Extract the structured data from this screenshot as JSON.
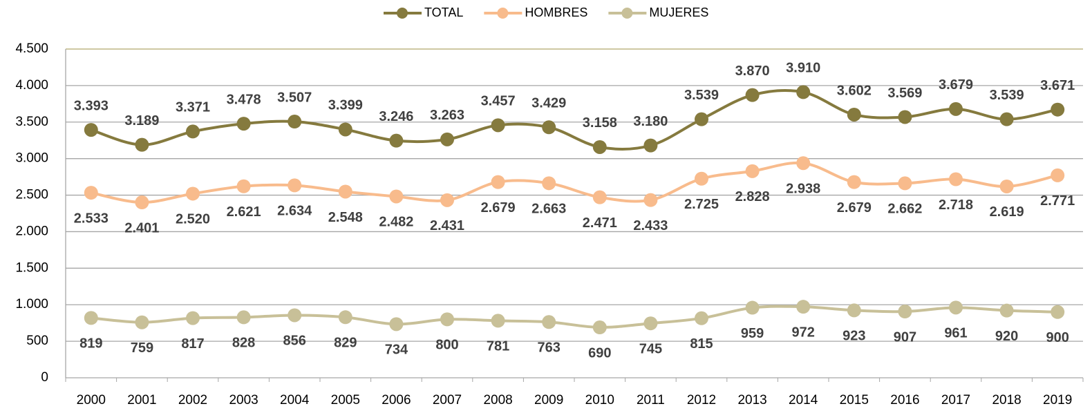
{
  "chart_data": {
    "type": "line",
    "categories": [
      "2000",
      "2001",
      "2002",
      "2003",
      "2004",
      "2005",
      "2006",
      "2007",
      "2008",
      "2009",
      "2010",
      "2011",
      "2012",
      "2013",
      "2014",
      "2015",
      "2016",
      "2017",
      "2018",
      "2019"
    ],
    "series": [
      {
        "name": "TOTAL",
        "color": "#857a3e",
        "values": [
          3393,
          3189,
          3371,
          3478,
          3507,
          3399,
          3246,
          3263,
          3457,
          3429,
          3158,
          3180,
          3539,
          3870,
          3910,
          3602,
          3569,
          3679,
          3539,
          3671
        ],
        "value_labels": [
          "3.393",
          "3.189",
          "3.371",
          "3.478",
          "3.507",
          "3.399",
          "3.246",
          "3.263",
          "3.457",
          "3.429",
          "3.158",
          "3.180",
          "3.539",
          "3.870",
          "3.910",
          "3.602",
          "3.569",
          "3.679",
          "3.539",
          "3.671"
        ]
      },
      {
        "name": "HOMBRES",
        "color": "#f8bb8c",
        "values": [
          2533,
          2401,
          2520,
          2621,
          2634,
          2548,
          2482,
          2431,
          2679,
          2663,
          2471,
          2433,
          2725,
          2828,
          2938,
          2679,
          2662,
          2718,
          2619,
          2771
        ],
        "value_labels": [
          "2.533",
          "2.401",
          "2.520",
          "2.621",
          "2.634",
          "2.548",
          "2.482",
          "2.431",
          "2.679",
          "2.663",
          "2.471",
          "2.433",
          "2.725",
          "2.828",
          "2.938",
          "2.679",
          "2.662",
          "2.718",
          "2.619",
          "2.771"
        ]
      },
      {
        "name": "MUJERES",
        "color": "#c8c098",
        "values": [
          819,
          759,
          817,
          828,
          856,
          829,
          734,
          800,
          781,
          763,
          690,
          745,
          815,
          959,
          972,
          923,
          907,
          961,
          920,
          900
        ]
      }
    ],
    "ylim": [
      0,
      4500
    ],
    "yticks": [
      0,
      500,
      {
        "value": 1000,
        "label": "1.000"
      },
      {
        "value": 1500,
        "label": "1.500"
      },
      {
        "value": 2000,
        "label": "2.000"
      },
      {
        "value": 2500,
        "label": "2.500"
      },
      {
        "value": 3000,
        "label": "3.000"
      },
      {
        "value": 3500,
        "label": "3.500"
      },
      {
        "value": 4000,
        "label": "4.000"
      },
      {
        "value": 4500,
        "label": "4.500"
      }
    ],
    "grid": true,
    "legend": "top"
  }
}
